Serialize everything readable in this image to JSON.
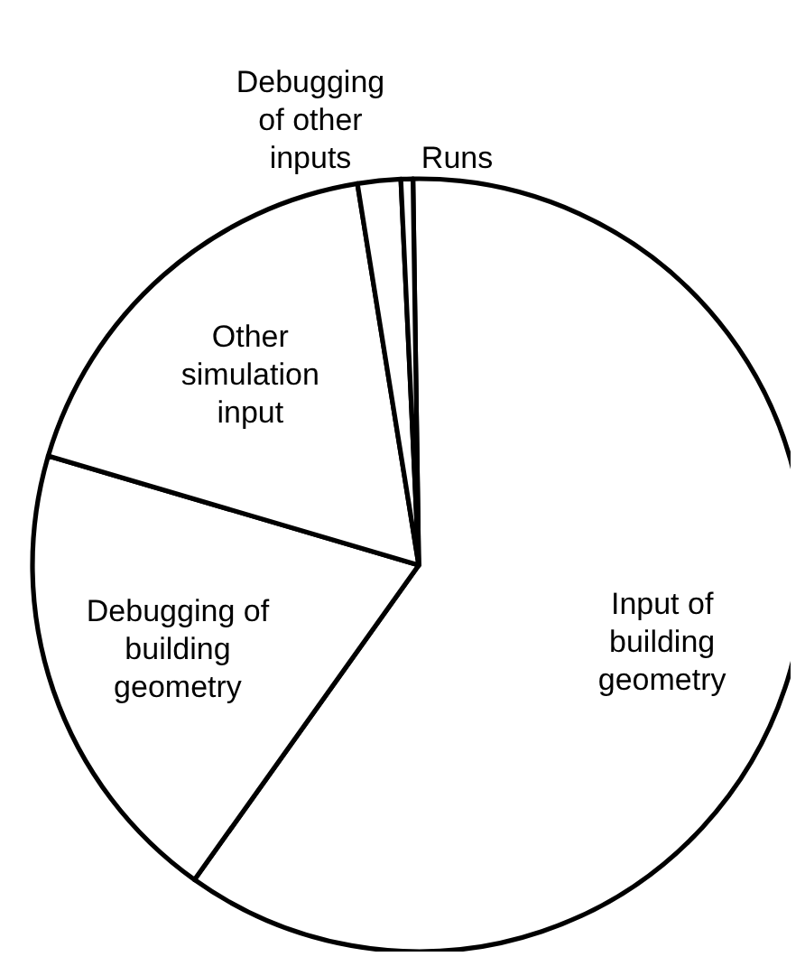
{
  "chart_data": {
    "type": "pie",
    "categories": [
      "Input of building geometry",
      "Debugging of building geometry",
      "Other simulation input",
      "Debugging of other inputs",
      "Runs"
    ],
    "values": [
      60.1,
      19.7,
      17.9,
      1.8,
      0.5
    ],
    "colors": [
      "#ffffff",
      "#ffffff",
      "#ffffff",
      "#ffffff",
      "#ffffff"
    ]
  }
}
